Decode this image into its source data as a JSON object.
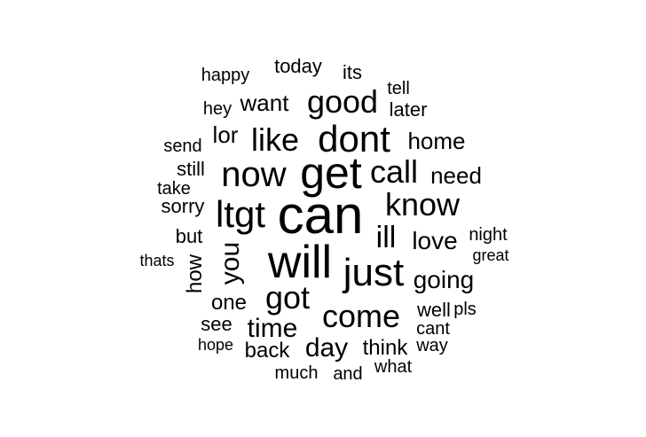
{
  "word_cloud": {
    "colors": {
      "background": "#ffffff",
      "text": "#000000"
    },
    "words": [
      {
        "text": "can",
        "rotated": false
      },
      {
        "text": "get",
        "rotated": false
      },
      {
        "text": "will",
        "rotated": false
      },
      {
        "text": "now",
        "rotated": false
      },
      {
        "text": "dont",
        "rotated": false
      },
      {
        "text": "just",
        "rotated": false
      },
      {
        "text": "ltgt",
        "rotated": false
      },
      {
        "text": "call",
        "rotated": false
      },
      {
        "text": "know",
        "rotated": false
      },
      {
        "text": "good",
        "rotated": false
      },
      {
        "text": "come",
        "rotated": false
      },
      {
        "text": "got",
        "rotated": false
      },
      {
        "text": "like",
        "rotated": false
      },
      {
        "text": "you",
        "rotated": true
      },
      {
        "text": "ill",
        "rotated": false
      },
      {
        "text": "time",
        "rotated": false
      },
      {
        "text": "day",
        "rotated": false
      },
      {
        "text": "love",
        "rotated": false
      },
      {
        "text": "going",
        "rotated": false
      },
      {
        "text": "home",
        "rotated": false
      },
      {
        "text": "want",
        "rotated": false
      },
      {
        "text": "need",
        "rotated": false
      },
      {
        "text": "think",
        "rotated": false
      },
      {
        "text": "lor",
        "rotated": false
      },
      {
        "text": "one",
        "rotated": false
      },
      {
        "text": "how",
        "rotated": true
      },
      {
        "text": "back",
        "rotated": false
      },
      {
        "text": "sorry",
        "rotated": false
      },
      {
        "text": "still",
        "rotated": false
      },
      {
        "text": "see",
        "rotated": false
      },
      {
        "text": "today",
        "rotated": false
      },
      {
        "text": "its",
        "rotated": false
      },
      {
        "text": "later",
        "rotated": false
      },
      {
        "text": "but",
        "rotated": false
      },
      {
        "text": "well",
        "rotated": false
      },
      {
        "text": "cant",
        "rotated": false
      },
      {
        "text": "send",
        "rotated": false
      },
      {
        "text": "happy",
        "rotated": false
      },
      {
        "text": "hey",
        "rotated": false
      },
      {
        "text": "tell",
        "rotated": false
      },
      {
        "text": "take",
        "rotated": false
      },
      {
        "text": "night",
        "rotated": false
      },
      {
        "text": "pls",
        "rotated": false
      },
      {
        "text": "much",
        "rotated": false
      },
      {
        "text": "and",
        "rotated": false
      },
      {
        "text": "way",
        "rotated": false
      },
      {
        "text": "what",
        "rotated": false
      },
      {
        "text": "hope",
        "rotated": false
      },
      {
        "text": "great",
        "rotated": false
      },
      {
        "text": "thats",
        "rotated": false
      }
    ]
  }
}
